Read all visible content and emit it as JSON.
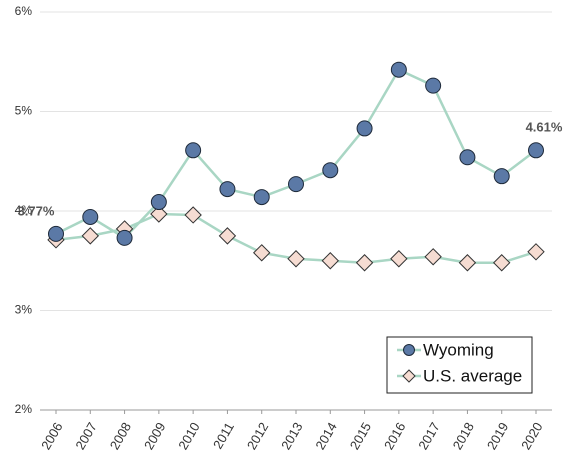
{
  "chart_data": {
    "type": "line",
    "categories": [
      "2006",
      "2007",
      "2008",
      "2009",
      "2010",
      "2011",
      "2012",
      "2013",
      "2014",
      "2015",
      "2016",
      "2017",
      "2018",
      "2019",
      "2020"
    ],
    "series": [
      {
        "name": "Wyoming",
        "marker": "circle",
        "color": "#5b79a6",
        "line_color": "#a9d6c4",
        "values": [
          3.77,
          3.94,
          3.73,
          4.09,
          4.61,
          4.22,
          4.14,
          4.27,
          4.41,
          4.83,
          5.42,
          5.26,
          4.54,
          4.35,
          4.61
        ],
        "value_labels": [
          "3.77%",
          null,
          null,
          null,
          null,
          null,
          null,
          null,
          null,
          null,
          null,
          null,
          null,
          null,
          "4.61%"
        ]
      },
      {
        "name": "U.S. average",
        "marker": "diamond",
        "color": "#f6dcd2",
        "line_color": "#a9d6c4",
        "values": [
          3.71,
          3.75,
          3.82,
          3.97,
          3.96,
          3.75,
          3.58,
          3.52,
          3.5,
          3.48,
          3.52,
          3.54,
          3.48,
          3.48,
          3.59
        ]
      }
    ],
    "ylim": [
      2,
      6
    ],
    "yticks": [
      {
        "value": 2,
        "label": "2%"
      },
      {
        "value": 3,
        "label": "3%"
      },
      {
        "value": 4,
        "label": "4%"
      },
      {
        "value": 5,
        "label": "5%"
      },
      {
        "value": 6,
        "label": "6%"
      }
    ],
    "grid": true,
    "legend": "lower right"
  }
}
